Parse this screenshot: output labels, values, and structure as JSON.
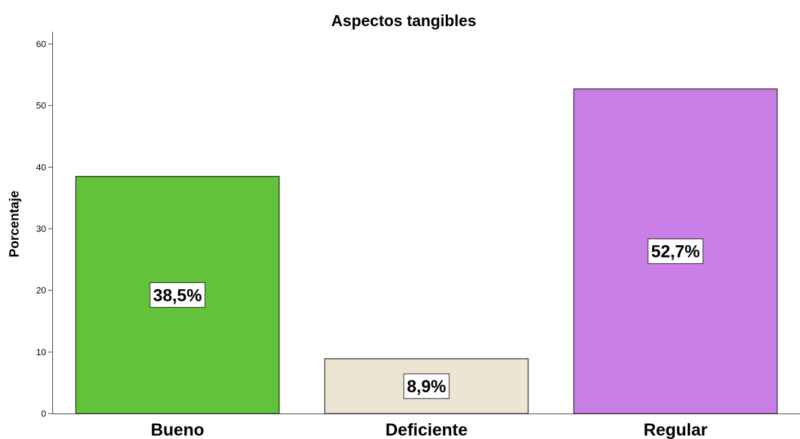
{
  "chart_data": {
    "type": "bar",
    "title": "Aspectos tangibles",
    "xlabel": "",
    "ylabel": "Porcentaje",
    "categories": [
      "Bueno",
      "Deficiente",
      "Regular"
    ],
    "values": [
      38.5,
      8.9,
      52.7
    ],
    "data_labels": [
      "38,5%",
      "8,9%",
      "52,7%"
    ],
    "colors": [
      "#62c23a",
      "#ebe5d1",
      "#ca7fe7"
    ],
    "ylim": [
      0,
      62
    ],
    "yticks": [
      "0",
      "10",
      "20",
      "30",
      "40",
      "50",
      "60"
    ],
    "grid": false,
    "legend": "none"
  }
}
